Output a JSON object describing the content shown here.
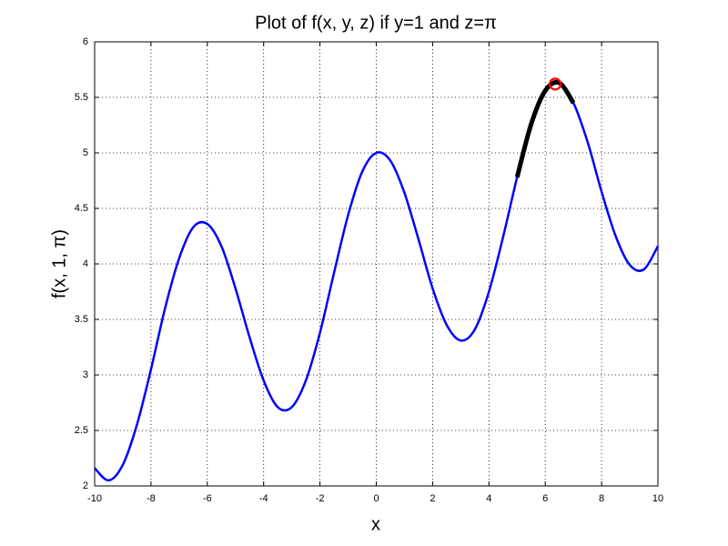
{
  "chart_data": {
    "type": "line",
    "title": "Plot of f(x, y, z) if y=1 and z=π",
    "x_label": "x",
    "y_label": "f(x, 1, π)",
    "x": [
      -10,
      -9.5,
      -9,
      -8.5,
      -8,
      -7.5,
      -7,
      -6.5,
      -6,
      -5.5,
      -5,
      -4.5,
      -4,
      -3.5,
      -3,
      -2.5,
      -2,
      -1.5,
      -1,
      -0.5,
      0,
      0.5,
      1,
      1.5,
      2,
      2.5,
      3,
      3.5,
      4,
      4.5,
      5,
      5.5,
      6,
      6.5,
      7,
      7.5,
      8,
      8.5,
      9,
      9.5,
      10
    ],
    "series": [
      {
        "color": "#0000ff",
        "style": "line",
        "values": [
          2.16,
          2.05,
          2.19,
          2.55,
          3.05,
          3.6,
          4.05,
          4.33,
          4.36,
          4.16,
          3.78,
          3.34,
          2.95,
          2.71,
          2.71,
          2.95,
          3.38,
          3.92,
          4.44,
          4.83,
          5.0,
          4.93,
          4.64,
          4.22,
          3.78,
          3.45,
          3.31,
          3.41,
          3.75,
          4.24,
          4.78,
          5.26,
          5.56,
          5.63,
          5.45,
          5.1,
          4.65,
          4.25,
          3.99,
          3.95,
          4.16
        ]
      },
      {
        "color": "#000000",
        "style": "thick-line",
        "x": [
          5,
          5.5,
          6,
          6.5,
          7
        ],
        "values": [
          4.78,
          5.26,
          5.56,
          5.63,
          5.45
        ]
      },
      {
        "color": "#ff0000",
        "style": "circle-marker",
        "x": [
          6.35
        ],
        "values": [
          5.62
        ]
      }
    ],
    "xlim": [
      -10,
      10
    ],
    "xticks": [
      -10,
      -8,
      -6,
      -4,
      -2,
      0,
      2,
      4,
      6,
      8,
      10
    ],
    "ylim": [
      2,
      6
    ],
    "yticks": [
      2,
      2.5,
      3,
      3.5,
      4,
      4.5,
      5,
      5.5,
      6
    ],
    "grid": true
  }
}
